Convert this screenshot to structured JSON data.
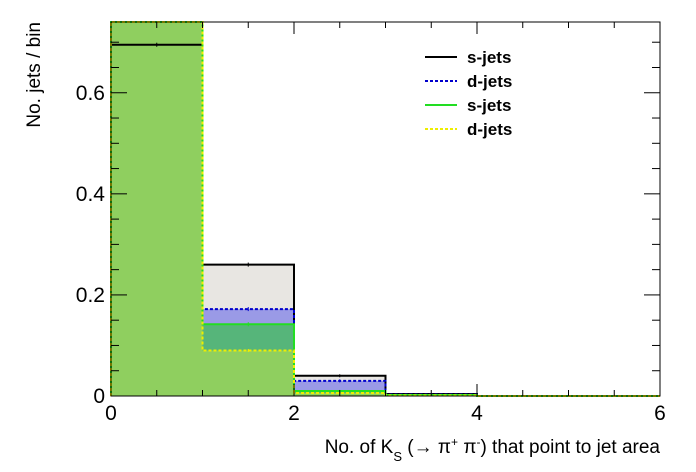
{
  "chart_data": {
    "type": "histogram",
    "xlabel": {
      "pre": "No. of K",
      "sub": "S",
      "mid": " (→ π",
      "sup1": "+",
      "mid2": " π",
      "sup2": "-",
      "post": ") that point to jet area"
    },
    "ylabel": "No. jets / bin",
    "xlim": [
      0,
      6
    ],
    "ylim": [
      0,
      0.74
    ],
    "x_ticks": [
      "0",
      "2",
      "4",
      "6"
    ],
    "y_ticks": [
      "0",
      "0.2",
      "0.4",
      "0.6"
    ],
    "x_tick_values": [
      0,
      2,
      4,
      6
    ],
    "y_tick_values": [
      0,
      0.2,
      0.4,
      0.6
    ],
    "bin_edges": [
      0,
      1,
      2,
      3,
      4,
      5,
      6
    ],
    "series": [
      {
        "name": "s-jets",
        "style": "solid",
        "line_color": "#000000",
        "fill_color": "#e8e6e2",
        "values": [
          0.695,
          0.26,
          0.04,
          0.004,
          0.0,
          0.0
        ],
        "errors": [
          0.004,
          0.004,
          0.003,
          0.001,
          0,
          0
        ]
      },
      {
        "name": "d-jets",
        "style": "dashed",
        "line_color": "#0000cc",
        "fill_color": "#9a9ae6",
        "values": [
          0.78,
          0.172,
          0.03,
          0.003,
          0.0,
          0.0
        ],
        "errors": [
          0.004,
          0.004,
          0.003,
          0.001,
          0,
          0
        ]
      },
      {
        "name": "s-jets",
        "style": "solid",
        "line_color": "#22dd22",
        "fill_color": "#56b57a",
        "values": [
          0.78,
          0.142,
          0.01,
          0.002,
          0.0,
          0.0
        ],
        "errors": [
          0.004,
          0.004,
          0.002,
          0.001,
          0,
          0
        ]
      },
      {
        "name": "d-jets",
        "style": "dashed",
        "line_color": "#eeee00",
        "fill_color": "#8fcf5f",
        "values": [
          0.78,
          0.09,
          0.006,
          0.001,
          0.0,
          0.0
        ],
        "errors": [
          0.004,
          0.003,
          0.002,
          0.001,
          0,
          0
        ]
      }
    ],
    "legend": {
      "position": "top-right",
      "entries": [
        {
          "label": "s-jets",
          "color": "#000000",
          "style": "solid"
        },
        {
          "label": "d-jets",
          "color": "#0000cc",
          "style": "dashed"
        },
        {
          "label": "s-jets",
          "color": "#22dd22",
          "style": "solid"
        },
        {
          "label": "d-jets",
          "color": "#eeee00",
          "style": "dashed"
        }
      ]
    },
    "grid": false
  }
}
